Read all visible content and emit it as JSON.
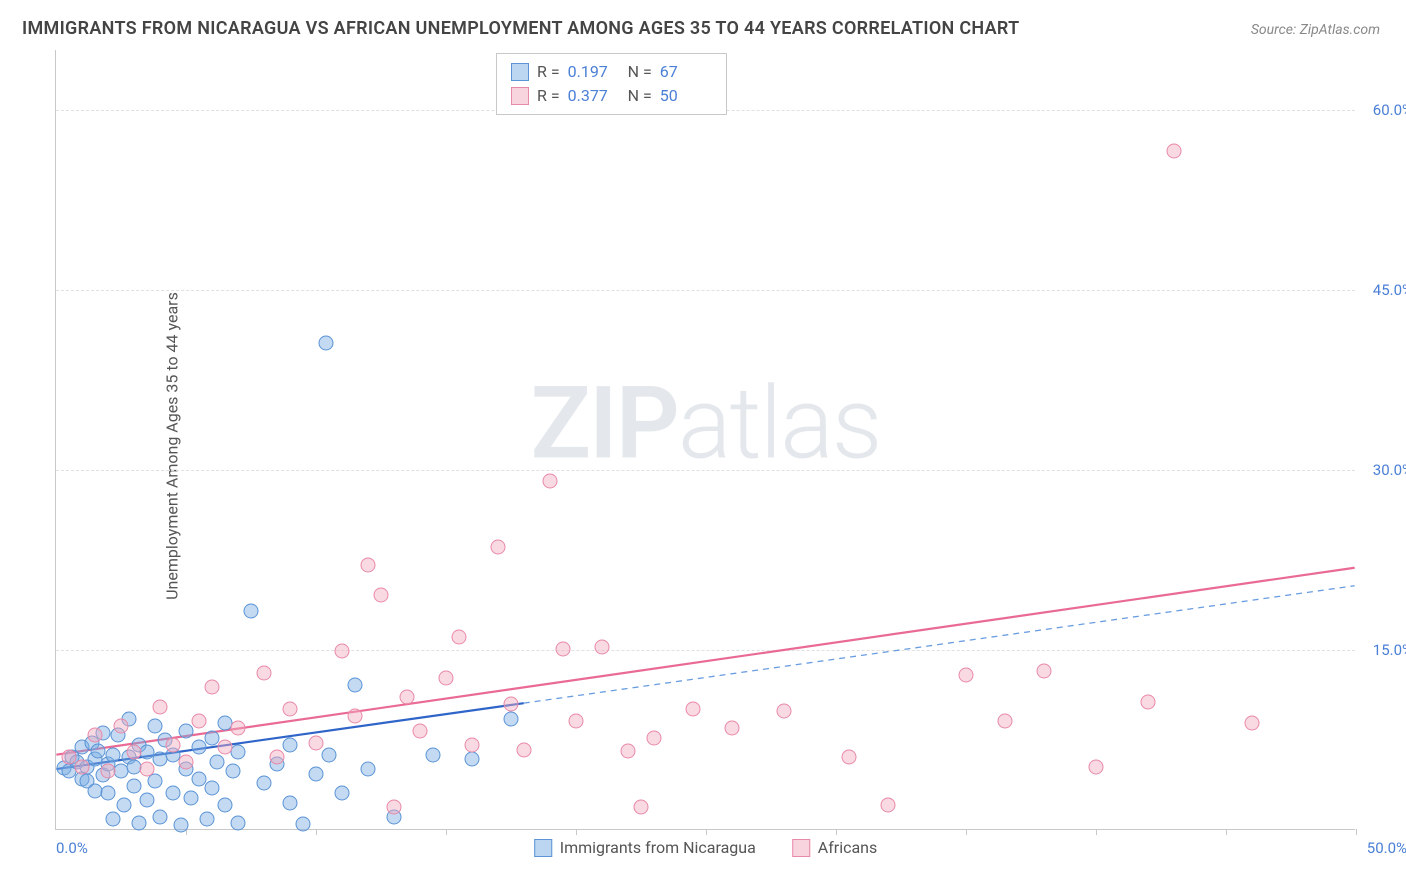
{
  "title": "IMMIGRANTS FROM NICARAGUA VS AFRICAN UNEMPLOYMENT AMONG AGES 35 TO 44 YEARS CORRELATION CHART",
  "source": "Source: ZipAtlas.com",
  "y_axis_label": "Unemployment Among Ages 35 to 44 years",
  "watermark_bold": "ZIP",
  "watermark_light": "atlas",
  "chart": {
    "type": "scatter",
    "xlim": [
      0,
      50
    ],
    "ylim": [
      0,
      65
    ],
    "x_origin_label": "0.0%",
    "x_max_label": "50.0%",
    "y_ticks": [
      {
        "value": 15,
        "label": "15.0%"
      },
      {
        "value": 30,
        "label": "30.0%"
      },
      {
        "value": 45,
        "label": "45.0%"
      },
      {
        "value": 60,
        "label": "60.0%"
      }
    ],
    "x_tick_step": 5,
    "background_color": "#ffffff",
    "grid_color": "#e0e0e0",
    "axis_color": "#c8c8c8",
    "label_color": "#4a7fd6",
    "marker_radius": 7.5,
    "series": [
      {
        "id": "nicaragua",
        "label": "Immigrants from Nicaragua",
        "class": "blue",
        "fill_color": "rgba(122,172,227,0.45)",
        "border_color": "#5a93d6",
        "R": "0.197",
        "N": "67",
        "trend": {
          "solid": {
            "x1": 0,
            "y1": 5.0,
            "x2": 18,
            "y2": 10.5,
            "color": "#2f64c8",
            "width": 2.2
          },
          "dashed": {
            "x1": 18,
            "y1": 10.5,
            "x2": 50,
            "y2": 20.3,
            "color": "#6a9de0",
            "width": 1.3,
            "dash": "6 5"
          }
        },
        "points": [
          [
            0.3,
            5.1
          ],
          [
            0.5,
            4.8
          ],
          [
            0.6,
            6.0
          ],
          [
            0.8,
            5.6
          ],
          [
            1.0,
            4.2
          ],
          [
            1.0,
            6.8
          ],
          [
            1.2,
            5.2
          ],
          [
            1.2,
            4.0
          ],
          [
            1.4,
            7.2
          ],
          [
            1.5,
            3.2
          ],
          [
            1.5,
            5.8
          ],
          [
            1.6,
            6.5
          ],
          [
            1.8,
            4.5
          ],
          [
            1.8,
            8.0
          ],
          [
            2.0,
            3.0
          ],
          [
            2.0,
            5.4
          ],
          [
            2.2,
            6.2
          ],
          [
            2.2,
            0.8
          ],
          [
            2.4,
            7.8
          ],
          [
            2.5,
            4.8
          ],
          [
            2.6,
            2.0
          ],
          [
            2.8,
            6.0
          ],
          [
            2.8,
            9.2
          ],
          [
            3.0,
            5.2
          ],
          [
            3.0,
            3.6
          ],
          [
            3.2,
            7.0
          ],
          [
            3.2,
            0.5
          ],
          [
            3.5,
            6.4
          ],
          [
            3.5,
            2.4
          ],
          [
            3.8,
            8.6
          ],
          [
            3.8,
            4.0
          ],
          [
            4.0,
            5.8
          ],
          [
            4.0,
            1.0
          ],
          [
            4.2,
            7.4
          ],
          [
            4.5,
            3.0
          ],
          [
            4.5,
            6.2
          ],
          [
            4.8,
            0.3
          ],
          [
            5.0,
            5.0
          ],
          [
            5.0,
            8.2
          ],
          [
            5.2,
            2.6
          ],
          [
            5.5,
            6.8
          ],
          [
            5.5,
            4.2
          ],
          [
            5.8,
            0.8
          ],
          [
            6.0,
            7.6
          ],
          [
            6.0,
            3.4
          ],
          [
            6.2,
            5.6
          ],
          [
            6.5,
            2.0
          ],
          [
            6.5,
            8.8
          ],
          [
            6.8,
            4.8
          ],
          [
            7.0,
            6.4
          ],
          [
            7.0,
            0.5
          ],
          [
            7.5,
            18.2
          ],
          [
            8.0,
            3.8
          ],
          [
            8.5,
            5.4
          ],
          [
            9.0,
            7.0
          ],
          [
            9.0,
            2.2
          ],
          [
            9.5,
            0.4
          ],
          [
            10.4,
            40.5
          ],
          [
            10.0,
            4.6
          ],
          [
            10.5,
            6.2
          ],
          [
            11.0,
            3.0
          ],
          [
            11.5,
            12.0
          ],
          [
            12.0,
            5.0
          ],
          [
            13.0,
            1.0
          ],
          [
            14.5,
            6.2
          ],
          [
            16.0,
            5.8
          ],
          [
            17.5,
            9.2
          ]
        ]
      },
      {
        "id": "africans",
        "label": "Africans",
        "class": "pink",
        "fill_color": "rgba(242,170,190,0.45)",
        "border_color": "#e989a8",
        "R": "0.377",
        "N": "50",
        "trend": {
          "solid": {
            "x1": 0,
            "y1": 6.2,
            "x2": 50,
            "y2": 21.8,
            "color": "#e96a94",
            "width": 2.2
          }
        },
        "points": [
          [
            0.5,
            6.0
          ],
          [
            1.0,
            5.2
          ],
          [
            1.5,
            7.8
          ],
          [
            2.0,
            4.8
          ],
          [
            2.5,
            8.6
          ],
          [
            3.0,
            6.4
          ],
          [
            3.5,
            5.0
          ],
          [
            4.0,
            10.2
          ],
          [
            4.5,
            7.0
          ],
          [
            5.0,
            5.6
          ],
          [
            5.5,
            9.0
          ],
          [
            6.0,
            11.8
          ],
          [
            6.5,
            6.8
          ],
          [
            7.0,
            8.4
          ],
          [
            8.0,
            13.0
          ],
          [
            8.5,
            6.0
          ],
          [
            9.0,
            10.0
          ],
          [
            10.0,
            7.2
          ],
          [
            11.0,
            14.8
          ],
          [
            11.5,
            9.4
          ],
          [
            12.0,
            22.0
          ],
          [
            12.5,
            19.5
          ],
          [
            13.0,
            1.8
          ],
          [
            13.5,
            11.0
          ],
          [
            14.0,
            8.2
          ],
          [
            15.0,
            12.6
          ],
          [
            15.5,
            16.0
          ],
          [
            16.0,
            7.0
          ],
          [
            17.0,
            23.5
          ],
          [
            17.5,
            10.4
          ],
          [
            18.0,
            6.6
          ],
          [
            19.0,
            29.0
          ],
          [
            19.5,
            15.0
          ],
          [
            20.0,
            9.0
          ],
          [
            21.0,
            15.2
          ],
          [
            22.0,
            6.5
          ],
          [
            22.5,
            1.8
          ],
          [
            23.0,
            7.6
          ],
          [
            24.5,
            10.0
          ],
          [
            26.0,
            8.4
          ],
          [
            28.0,
            9.8
          ],
          [
            30.5,
            6.0
          ],
          [
            32.0,
            2.0
          ],
          [
            35.0,
            12.8
          ],
          [
            36.5,
            9.0
          ],
          [
            38.0,
            13.2
          ],
          [
            40.0,
            5.2
          ],
          [
            42.0,
            10.6
          ],
          [
            43.0,
            56.5
          ],
          [
            46.0,
            8.8
          ]
        ]
      }
    ]
  },
  "stats_labels": {
    "R": "R  =",
    "N": "N  ="
  },
  "bottom_legend": [
    {
      "class": "blue",
      "label": "Immigrants from Nicaragua"
    },
    {
      "class": "pink",
      "label": "Africans"
    }
  ]
}
